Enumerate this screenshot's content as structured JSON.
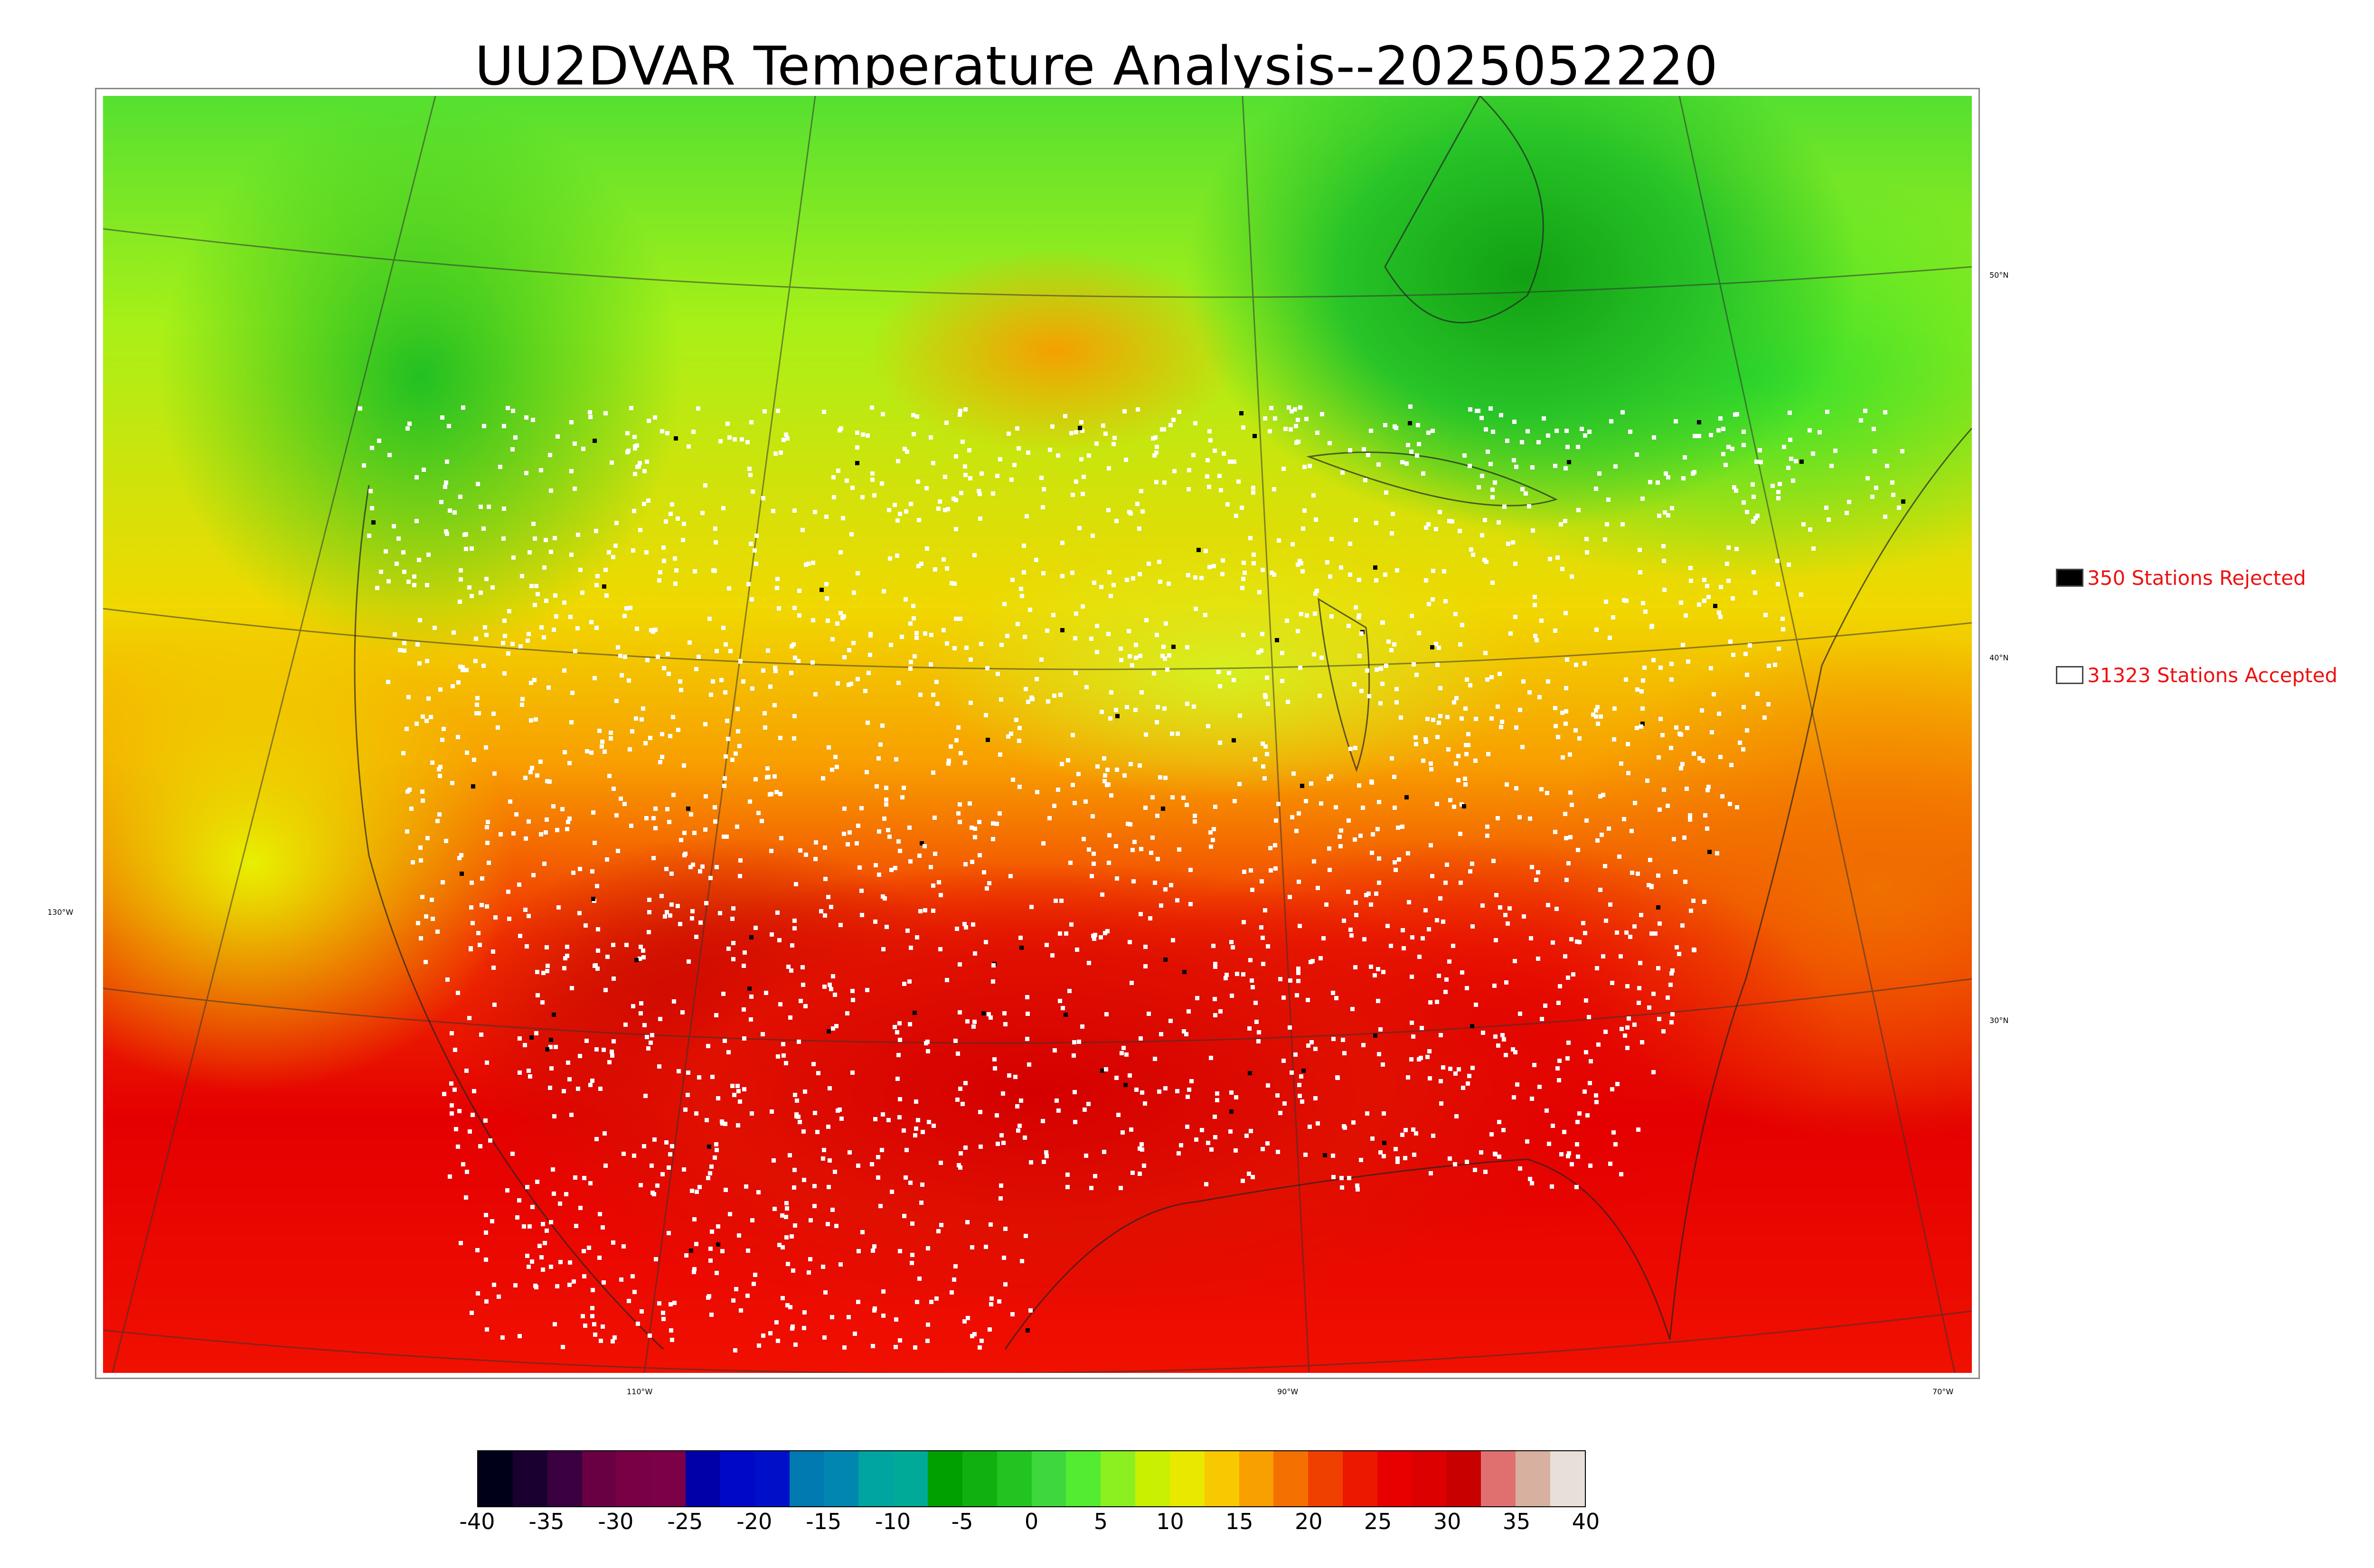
{
  "title": "UU2DVAR Temperature Analysis--2025052220",
  "legend": {
    "rejected": {
      "label": "350 Stations Rejected",
      "color": "#000000"
    },
    "accepted": {
      "label": "31323 Stations Accepted",
      "color": "#ffffff"
    }
  },
  "latitude_labels": [
    "50°N",
    "40°N",
    "30°N"
  ],
  "longitude_labels": [
    "130°W",
    "110°W",
    "90°W",
    "70°W"
  ],
  "colorbar": {
    "ticks": [
      "-40",
      "-35",
      "-30",
      "-25",
      "-20",
      "-15",
      "-10",
      "-5",
      "0",
      "5",
      "10",
      "15",
      "20",
      "25",
      "30",
      "35",
      "40"
    ],
    "colors": [
      "#000018",
      "#1a0030",
      "#3a0040",
      "#6a0044",
      "#7a0046",
      "#7c0048",
      "#0000a8",
      "#0008c8",
      "#0010c8",
      "#007ab0",
      "#0086b0",
      "#00a4a0",
      "#00aa98",
      "#00a000",
      "#10b010",
      "#22c422",
      "#3ed83e",
      "#54ec30",
      "#8cf020",
      "#c8f000",
      "#e8e800",
      "#f8c800",
      "#f8a000",
      "#f47000",
      "#f04000",
      "#ec1800",
      "#e80000",
      "#dc0000",
      "#c80000",
      "#e07070",
      "#d8b0a0",
      "#e8e0d8"
    ]
  }
}
